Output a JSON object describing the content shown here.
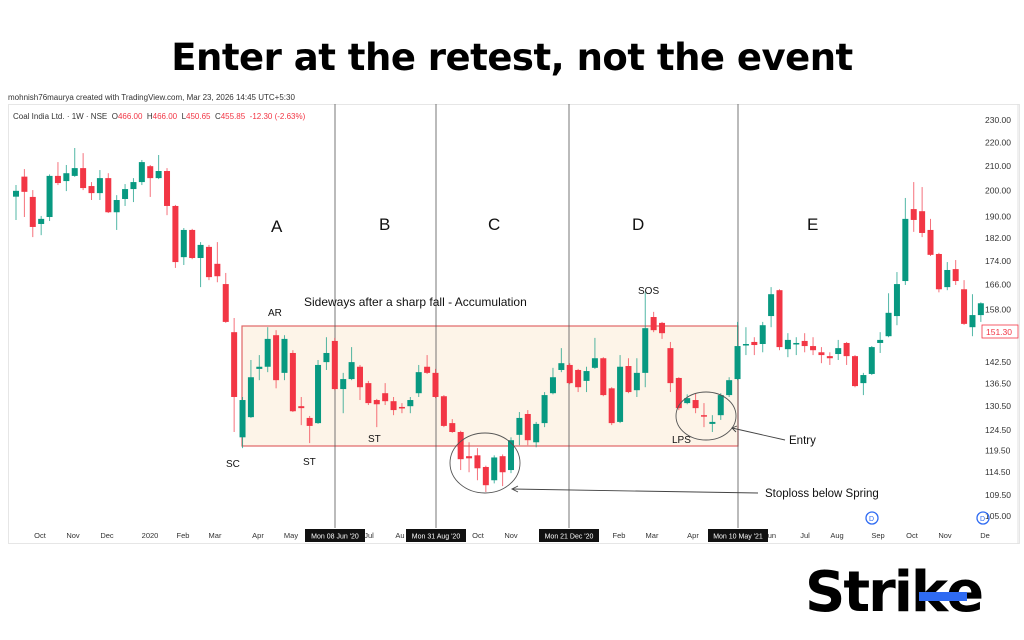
{
  "title": "Enter at the retest, not the event",
  "credit": "mohnish76maurya created with TradingView.com, Mar 23, 2026 14:45 UTC+5:30",
  "legend": {
    "symbol": "Coal India Ltd. · 1W · NSE",
    "o_label": "O",
    "o": "466.00",
    "h_label": "H",
    "h": "466.00",
    "l_label": "L",
    "l": "450.65",
    "c_label": "C",
    "c": "455.85",
    "change": "-12.30 (-2.63%)"
  },
  "logo": "Strike",
  "colors": {
    "up": "#089981",
    "down": "#f23645",
    "range_fill": "#fdf4e8",
    "range_border": "#e06666",
    "logo_accent": "#2f6bf2"
  },
  "chart_data": {
    "type": "candlestick",
    "title": "",
    "y_scale": "log",
    "ylim": [
      103,
      232
    ],
    "y_ticks": [
      "230.00",
      "220.00",
      "210.00",
      "200.00",
      "190.00",
      "182.00",
      "174.00",
      "166.00",
      "158.00",
      "142.50",
      "136.50",
      "130.50",
      "124.50",
      "119.50",
      "114.50",
      "109.50",
      "105.00"
    ],
    "last_price_label": "151.30",
    "x_ticks": [
      "Oct",
      "Nov",
      "Dec",
      "2020",
      "Feb",
      "Mar",
      "Apr",
      "May",
      "Jul",
      "Au",
      "Oct",
      "Nov",
      "Feb",
      "Mar",
      "Apr",
      "Jun",
      "Jul",
      "Aug",
      "Sep",
      "Oct",
      "Nov",
      "De"
    ],
    "markers": [
      "Mon 08 Jun '20",
      "Mon 31 Aug '20",
      "Mon 21 Dec '20",
      "Mon 10 May '21"
    ],
    "phases": [
      "A",
      "B",
      "C",
      "D",
      "E"
    ],
    "range_label": "Sideways after a sharp fall - Accumulation",
    "annotations": {
      "ar": "AR",
      "sc": "SC",
      "st1": "ST",
      "st2": "ST",
      "sos": "SOS",
      "lps": "LPS",
      "entry": "Entry",
      "stoploss": "Stoploss below Spring"
    },
    "candles_ohlc": [
      [
        197.6,
        202.2,
        188.7,
        199.9
      ],
      [
        205.6,
        208.7,
        189.8,
        199.5
      ],
      [
        197.5,
        200.2,
        182.4,
        186.1
      ],
      [
        187.2,
        190.2,
        183.1,
        189.1
      ],
      [
        189.8,
        206.5,
        188.3,
        205.9
      ],
      [
        205.9,
        211.6,
        202.2,
        203.0
      ],
      [
        203.8,
        210.4,
        199.8,
        207.0
      ],
      [
        205.9,
        217.6,
        205.5,
        209.1
      ],
      [
        209.1,
        215.4,
        200.2,
        201.0
      ],
      [
        201.8,
        203.4,
        196.3,
        199.0
      ],
      [
        199.0,
        208.3,
        196.3,
        205.0
      ],
      [
        205.0,
        207.0,
        191.3,
        191.6
      ],
      [
        191.6,
        198.2,
        185.0,
        196.3
      ],
      [
        196.7,
        202.6,
        194.0,
        200.6
      ],
      [
        200.6,
        205.0,
        195.5,
        203.4
      ],
      [
        203.4,
        212.5,
        202.2,
        211.6
      ],
      [
        209.9,
        210.4,
        197.5,
        205.0
      ],
      [
        205.0,
        214.6,
        204.6,
        207.9
      ],
      [
        207.9,
        209.1,
        190.5,
        194.0
      ],
      [
        194.0,
        194.4,
        171.6,
        173.6
      ],
      [
        175.3,
        185.7,
        172.6,
        185.0
      ],
      [
        185.0,
        185.4,
        174.6,
        175.0
      ],
      [
        175.0,
        180.6,
        165.2,
        179.6
      ],
      [
        178.9,
        179.6,
        167.5,
        168.5
      ],
      [
        173.0,
        180.6,
        166.8,
        168.8
      ],
      [
        166.2,
        169.9,
        153.9,
        154.2
      ],
      [
        151.1,
        155.4,
        124.0,
        132.9
      ],
      [
        122.7,
        132.9,
        120.1,
        132.1
      ],
      [
        127.7,
        143.0,
        127.5,
        138.2
      ],
      [
        140.5,
        144.4,
        137.4,
        141.1
      ],
      [
        141.1,
        152.6,
        139.6,
        149.1
      ],
      [
        150.2,
        151.7,
        135.2,
        137.4
      ],
      [
        139.4,
        150.2,
        137.4,
        149.1
      ],
      [
        145.0,
        145.8,
        129.0,
        129.2
      ],
      [
        130.5,
        132.9,
        125.7,
        130.0
      ],
      [
        127.5,
        128.0,
        121.3,
        125.5
      ],
      [
        126.2,
        143.0,
        126.0,
        141.6
      ],
      [
        142.4,
        149.6,
        140.2,
        145.0
      ],
      [
        148.5,
        149.4,
        134.7,
        135.0
      ],
      [
        135.0,
        139.4,
        128.7,
        137.7
      ],
      [
        137.7,
        146.7,
        137.4,
        142.4
      ],
      [
        141.1,
        141.6,
        132.1,
        135.5
      ],
      [
        136.6,
        137.2,
        130.8,
        131.3
      ],
      [
        132.1,
        132.4,
        125.2,
        131.0
      ],
      [
        133.9,
        136.6,
        130.8,
        131.8
      ],
      [
        131.8,
        132.9,
        128.2,
        129.5
      ],
      [
        130.3,
        131.3,
        128.7,
        130.0
      ],
      [
        130.5,
        132.9,
        128.7,
        132.1
      ],
      [
        133.9,
        141.6,
        132.9,
        139.6
      ],
      [
        141.1,
        144.4,
        139.1,
        139.4
      ],
      [
        139.4,
        140.5,
        132.6,
        132.9
      ],
      [
        133.1,
        133.4,
        125.2,
        125.5
      ],
      [
        126.2,
        127.2,
        123.8,
        124.0
      ],
      [
        124.0,
        124.3,
        115.0,
        117.5
      ],
      [
        118.2,
        121.5,
        114.5,
        117.7
      ],
      [
        118.4,
        120.1,
        112.7,
        115.4
      ],
      [
        115.7,
        116.0,
        110.1,
        111.6
      ],
      [
        112.7,
        118.4,
        112.0,
        117.9
      ],
      [
        118.2,
        118.6,
        111.4,
        114.5
      ],
      [
        115.0,
        122.7,
        114.3,
        122.0
      ],
      [
        123.3,
        129.0,
        120.8,
        127.5
      ],
      [
        128.5,
        129.5,
        120.8,
        122.0
      ],
      [
        121.5,
        126.5,
        120.3,
        126.0
      ],
      [
        126.2,
        134.2,
        125.2,
        133.4
      ],
      [
        133.9,
        140.8,
        133.6,
        138.2
      ],
      [
        140.2,
        146.4,
        139.6,
        142.1
      ],
      [
        141.6,
        142.1,
        136.3,
        136.6
      ],
      [
        140.2,
        140.5,
        134.2,
        135.5
      ],
      [
        137.2,
        141.1,
        134.2,
        139.9
      ],
      [
        140.8,
        149.4,
        140.5,
        143.5
      ],
      [
        143.5,
        143.8,
        133.1,
        133.4
      ],
      [
        135.2,
        135.5,
        125.7,
        126.2
      ],
      [
        126.5,
        144.4,
        126.2,
        141.1
      ],
      [
        141.3,
        143.5,
        133.9,
        134.2
      ],
      [
        134.7,
        143.5,
        132.9,
        139.4
      ],
      [
        139.4,
        163.5,
        135.5,
        152.3
      ],
      [
        155.7,
        157.3,
        151.1,
        151.7
      ],
      [
        153.9,
        154.2,
        149.1,
        150.8
      ],
      [
        146.4,
        148.2,
        134.2,
        136.6
      ],
      [
        138.0,
        138.2,
        129.5,
        130.0
      ],
      [
        131.3,
        133.6,
        131.0,
        132.6
      ],
      [
        132.1,
        133.9,
        128.7,
        130.0
      ],
      [
        128.2,
        131.3,
        125.2,
        128.0
      ],
      [
        126.0,
        128.2,
        124.0,
        126.5
      ],
      [
        128.2,
        133.9,
        127.0,
        133.4
      ],
      [
        133.4,
        138.2,
        132.9,
        137.4
      ],
      [
        137.7,
        154.2,
        137.4,
        147.0
      ],
      [
        147.3,
        152.6,
        144.4,
        147.6
      ],
      [
        148.2,
        149.6,
        144.4,
        147.3
      ],
      [
        147.6,
        154.2,
        145.2,
        153.2
      ],
      [
        156.0,
        165.2,
        152.6,
        162.9
      ],
      [
        164.2,
        164.5,
        145.8,
        146.7
      ],
      [
        146.1,
        150.8,
        143.8,
        148.8
      ],
      [
        147.6,
        149.6,
        144.4,
        147.9
      ],
      [
        148.5,
        150.8,
        145.2,
        147.0
      ],
      [
        147.0,
        149.6,
        144.4,
        145.8
      ],
      [
        145.2,
        146.7,
        142.1,
        144.4
      ],
      [
        144.1,
        145.2,
        141.6,
        143.5
      ],
      [
        144.7,
        148.8,
        143.0,
        146.4
      ],
      [
        147.9,
        148.2,
        141.6,
        144.1
      ],
      [
        144.1,
        144.4,
        135.5,
        135.8
      ],
      [
        136.6,
        139.4,
        133.4,
        138.8
      ],
      [
        139.1,
        147.0,
        138.8,
        146.7
      ],
      [
        147.9,
        151.1,
        145.0,
        148.8
      ],
      [
        149.9,
        163.2,
        149.6,
        157.0
      ],
      [
        156.0,
        170.2,
        153.2,
        166.2
      ],
      [
        167.2,
        197.1,
        165.9,
        189.1
      ],
      [
        192.8,
        203.4,
        184.3,
        188.7
      ],
      [
        192.0,
        201.4,
        182.4,
        183.9
      ],
      [
        185.0,
        189.1,
        175.7,
        176.1
      ],
      [
        176.4,
        176.8,
        163.5,
        164.5
      ],
      [
        165.2,
        173.6,
        164.2,
        170.9
      ],
      [
        171.2,
        174.3,
        165.9,
        167.2
      ],
      [
        164.5,
        167.5,
        153.3,
        153.6
      ],
      [
        152.6,
        162.9,
        149.9,
        156.3
      ],
      [
        156.3,
        160.3,
        154.2,
        160.0
      ]
    ]
  }
}
